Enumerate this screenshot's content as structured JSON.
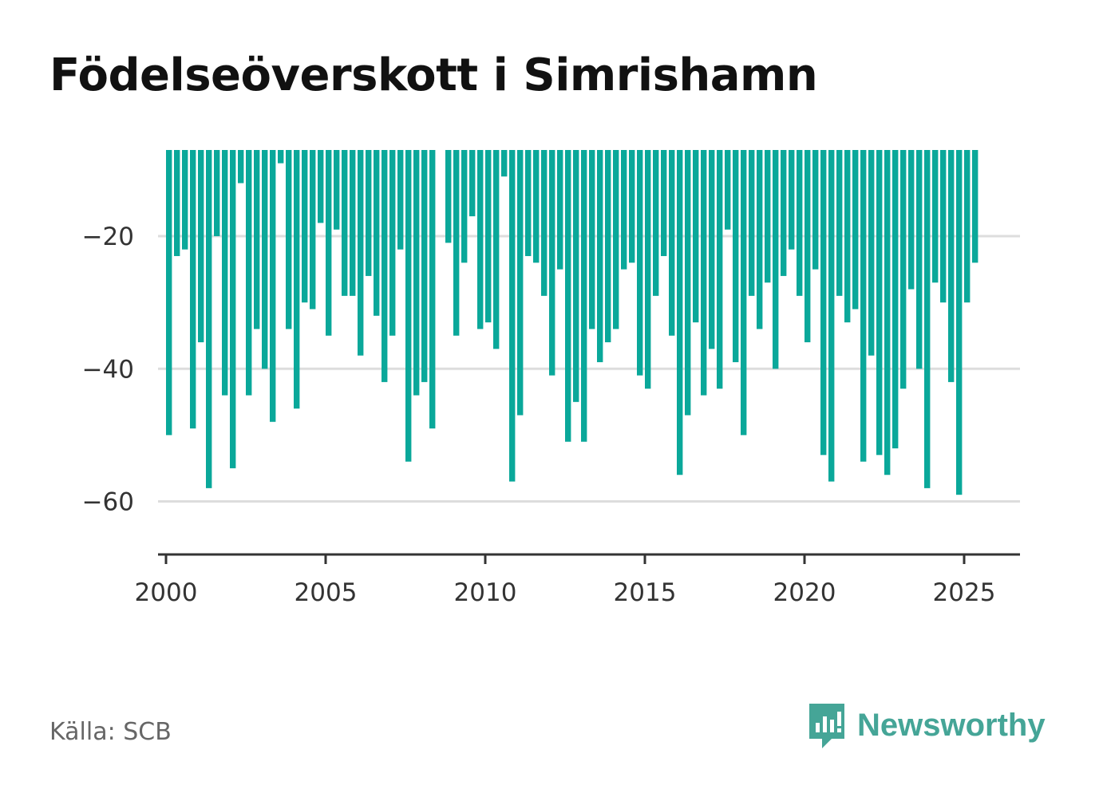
{
  "title": "Födelseöverskott i Simrishamn",
  "source": "Källa: SCB",
  "brand": "Newsworthy",
  "colors": {
    "bar": "#0aa89a",
    "brand": "#45a597",
    "grid": "#dddddd",
    "axis": "#333333"
  },
  "chart_data": {
    "type": "bar",
    "title": "Födelseöverskott i Simrishamn",
    "xlabel": "",
    "ylabel": "",
    "xlim": [
      1999.75,
      2026.75
    ],
    "ylim": [
      -68,
      -7
    ],
    "yticks": [
      -20,
      -40,
      -60
    ],
    "ytick_labels": [
      "−20",
      "−40",
      "−60"
    ],
    "xticks": [
      2000,
      2005,
      2010,
      2015,
      2020,
      2025
    ],
    "xtick_labels": [
      "2000",
      "2005",
      "2010",
      "2015",
      "2020",
      "2025"
    ],
    "grid": true,
    "bar_period_years": 0.25,
    "x": [
      2000.0,
      2000.25,
      2000.5,
      2000.75,
      2001.0,
      2001.25,
      2001.5,
      2001.75,
      2002.0,
      2002.25,
      2002.5,
      2002.75,
      2003.0,
      2003.25,
      2003.5,
      2003.75,
      2004.0,
      2004.25,
      2004.5,
      2004.75,
      2005.0,
      2005.25,
      2005.5,
      2005.75,
      2006.0,
      2006.25,
      2006.5,
      2006.75,
      2007.0,
      2007.25,
      2007.5,
      2007.75,
      2008.0,
      2008.25,
      2008.5,
      2008.75,
      2009.0,
      2009.25,
      2009.5,
      2009.75,
      2010.0,
      2010.25,
      2010.5,
      2010.75,
      2011.0,
      2011.25,
      2011.5,
      2011.75,
      2012.0,
      2012.25,
      2012.5,
      2012.75,
      2013.0,
      2013.25,
      2013.5,
      2013.75,
      2014.0,
      2014.25,
      2014.5,
      2014.75,
      2015.0,
      2015.25,
      2015.5,
      2015.75,
      2016.0,
      2016.25,
      2016.5,
      2016.75,
      2017.0,
      2017.25,
      2017.5,
      2017.75,
      2018.0,
      2018.25,
      2018.5,
      2018.75,
      2019.0,
      2019.25,
      2019.5,
      2019.75,
      2020.0,
      2020.25,
      2020.5,
      2020.75,
      2021.0,
      2021.25,
      2021.5,
      2021.75,
      2022.0,
      2022.25,
      2022.5,
      2022.75,
      2023.0,
      2023.25,
      2023.5,
      2023.75,
      2024.0,
      2024.25,
      2024.5,
      2024.75,
      2025.0,
      2025.25
    ],
    "values": [
      -50,
      -23,
      -22,
      -49,
      -36,
      -58,
      -20,
      -44,
      -55,
      -12,
      -44,
      -34,
      -40,
      -48,
      -9,
      -34,
      -46,
      -30,
      -31,
      -18,
      -35,
      -19,
      -29,
      -29,
      -38,
      -26,
      -32,
      -42,
      -35,
      -22,
      -54,
      -44,
      -42,
      -49,
      null,
      -21,
      -35,
      -24,
      -17,
      -34,
      -33,
      -37,
      -11,
      -57,
      -47,
      -23,
      -24,
      -29,
      -41,
      -25,
      -51,
      -45,
      -51,
      -34,
      -39,
      -36,
      -34,
      -25,
      -24,
      -41,
      -43,
      -29,
      -23,
      -35,
      -56,
      -47,
      -33,
      -44,
      -37,
      -43,
      -19,
      -39,
      -50,
      -29,
      -34,
      -27,
      -40,
      -26,
      -22,
      -29,
      -36,
      -25,
      -53,
      -57,
      -29,
      -33,
      -31,
      -54,
      -38,
      -53,
      -56,
      -52,
      -43,
      -28,
      -40,
      -58,
      -27,
      -30,
      -42,
      -59,
      -30,
      -24
    ]
  }
}
